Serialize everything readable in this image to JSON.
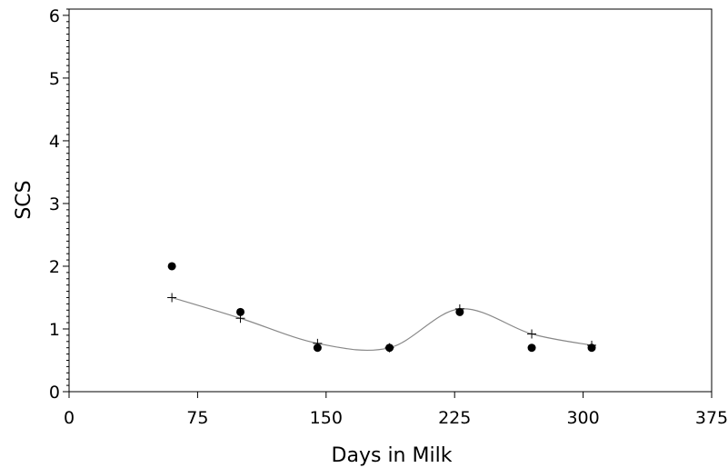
{
  "chart_data": {
    "type": "scatter",
    "title": "",
    "xlabel": "Days in Milk",
    "ylabel": "SCS",
    "xlim": [
      0,
      375
    ],
    "ylim": [
      0,
      6.1
    ],
    "x_ticks": [
      0,
      75,
      150,
      225,
      300,
      375
    ],
    "y_ticks": [
      0,
      1,
      2,
      3,
      4,
      5,
      6
    ],
    "x_tick_labels": [
      "0",
      "75",
      "150",
      "225",
      "300",
      "375"
    ],
    "y_tick_labels": [
      "0",
      "1",
      "2",
      "3",
      "4",
      "5",
      "6"
    ],
    "grid": false,
    "legend": "none",
    "series": [
      {
        "marker": "filled-circle",
        "color": "#000000",
        "points": [
          {
            "x": 60,
            "y": 2.0
          },
          {
            "x": 100,
            "y": 1.27
          },
          {
            "x": 145,
            "y": 0.7
          },
          {
            "x": 187,
            "y": 0.7
          },
          {
            "x": 228,
            "y": 1.27
          },
          {
            "x": 270,
            "y": 0.7
          },
          {
            "x": 305,
            "y": 0.7
          }
        ]
      },
      {
        "marker": "plus",
        "line": "smooth",
        "color": "#888888",
        "points": [
          {
            "x": 60,
            "y": 1.5
          },
          {
            "x": 100,
            "y": 1.17
          },
          {
            "x": 145,
            "y": 0.77
          },
          {
            "x": 187,
            "y": 0.7
          },
          {
            "x": 228,
            "y": 1.32
          },
          {
            "x": 270,
            "y": 0.92
          },
          {
            "x": 305,
            "y": 0.74
          }
        ]
      }
    ]
  }
}
